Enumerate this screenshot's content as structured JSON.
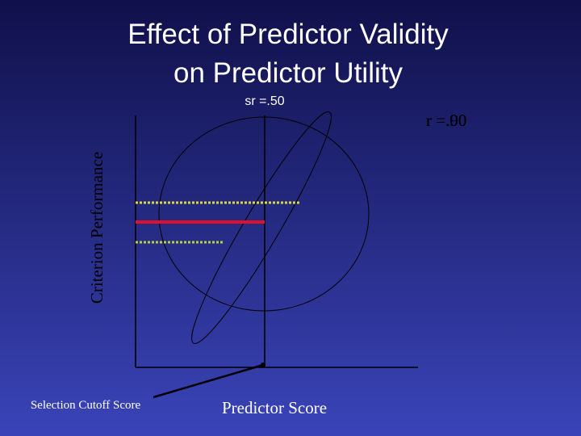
{
  "header": {
    "title_lines": [
      "Effect of Predictor Validity",
      "on Predictor Utility"
    ]
  },
  "diagram": {
    "selection_ratio": "sr =.50",
    "validity_labels": [
      "r =.90",
      "r =.00"
    ],
    "y_axis_label": "Criterion Performance",
    "x_axis_label": "Predictor Score",
    "cutoff_label": "Selection Cutoff Score"
  }
}
